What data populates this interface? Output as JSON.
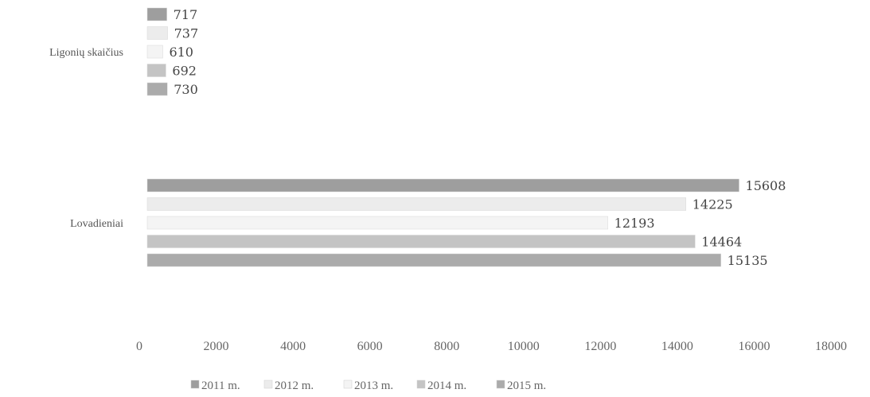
{
  "chart_data": {
    "type": "bar",
    "orientation": "horizontal",
    "categories": [
      "Ligonių skaičius",
      "Lovadieniai"
    ],
    "series": [
      {
        "name": "2011 m.",
        "values": [
          717,
          15608
        ],
        "color": "#9e9e9e"
      },
      {
        "name": "2012 m.",
        "values": [
          737,
          14225
        ],
        "color": "#ececec"
      },
      {
        "name": "2013 m.",
        "values": [
          610,
          12193
        ],
        "color": "#f4f4f4"
      },
      {
        "name": "2014 m.",
        "values": [
          692,
          14464
        ],
        "color": "#c4c4c4"
      },
      {
        "name": "2015 m.",
        "values": [
          730,
          15135
        ],
        "color": "#ababab"
      }
    ],
    "xlim": [
      0,
      18000
    ],
    "xticks": [
      "0",
      "2000",
      "4000",
      "6000",
      "8000",
      "10000",
      "12000",
      "14000",
      "16000",
      "18000"
    ],
    "grid": false,
    "legend_position": "bottom"
  }
}
